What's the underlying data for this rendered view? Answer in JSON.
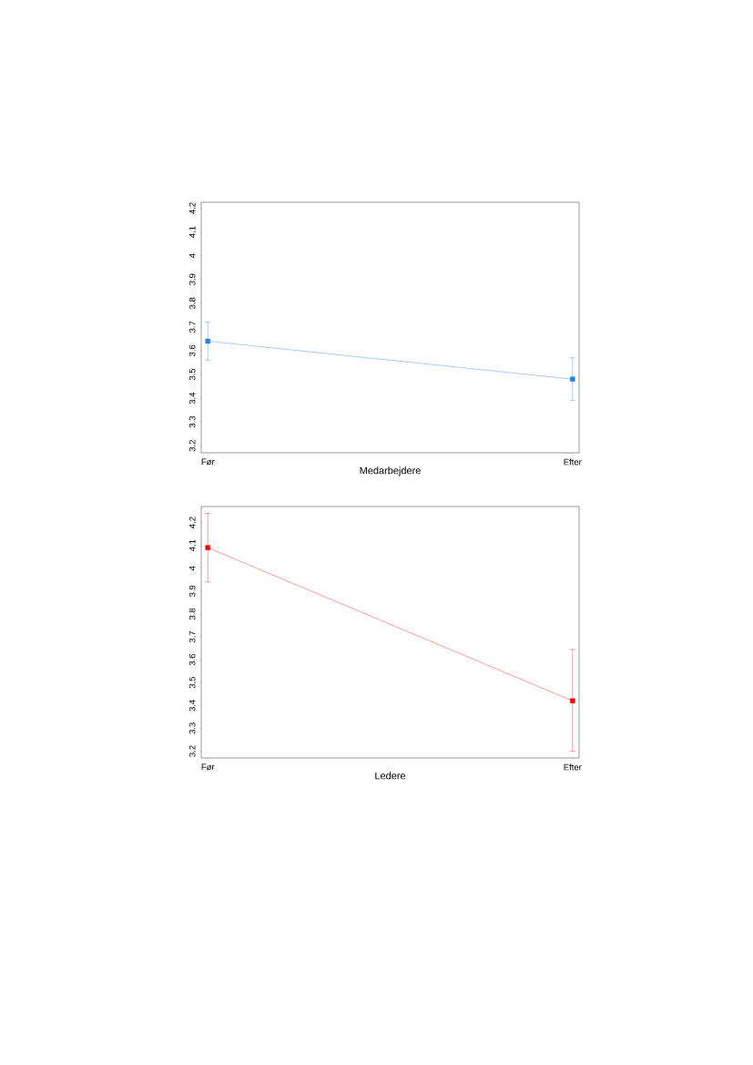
{
  "chart_data": [
    {
      "type": "line",
      "xlabel": "Medarbejdere",
      "categories": [
        "Før",
        "Efter"
      ],
      "values": [
        3.64,
        3.48
      ],
      "errors": [
        [
          3.56,
          3.72
        ],
        [
          3.39,
          3.57
        ]
      ],
      "color": "#1a80ff",
      "marker": "square",
      "ylim": [
        3.17,
        4.225
      ],
      "yticks": [
        3.2,
        3.3,
        3.4,
        3.5,
        3.6,
        3.7,
        3.8,
        3.9,
        4,
        4.1,
        4.2
      ]
    },
    {
      "type": "line",
      "xlabel": "Ledere",
      "categories": [
        "Før",
        "Efter"
      ],
      "values": [
        4.09,
        3.42
      ],
      "errors": [
        [
          3.94,
          4.24
        ],
        [
          3.2,
          3.645
        ]
      ],
      "color": "#ff0000",
      "marker": "square",
      "ylim": [
        3.17,
        4.27
      ],
      "yticks": [
        3.2,
        3.3,
        3.4,
        3.5,
        3.6,
        3.7,
        3.8,
        3.9,
        4,
        4.1,
        4.2
      ]
    }
  ]
}
